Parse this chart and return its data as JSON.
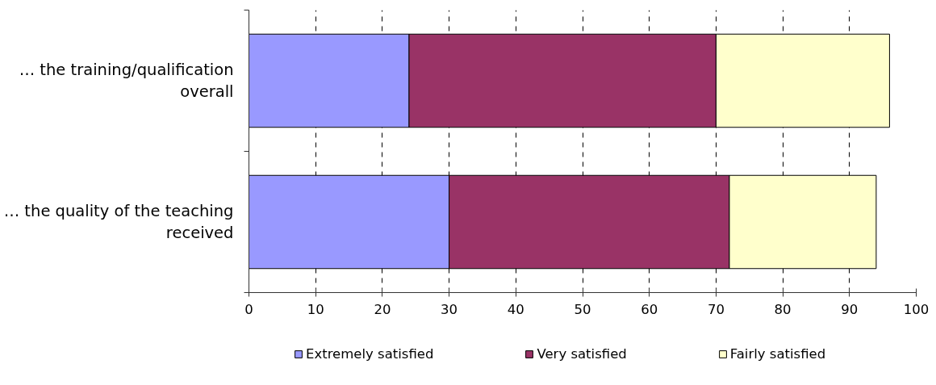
{
  "chart_data": {
    "type": "bar",
    "orientation": "horizontal",
    "stacked": true,
    "categories": [
      "… the training/qualification overall",
      "… the quality of the teaching received"
    ],
    "series": [
      {
        "name": "Extremely satisfied",
        "color": "#9999ff",
        "values": [
          24,
          30
        ]
      },
      {
        "name": "Very satisfied",
        "color": "#993366",
        "values": [
          46,
          42
        ]
      },
      {
        "name": "Fairly satisfied",
        "color": "#ffffcc",
        "values": [
          26,
          22
        ]
      }
    ],
    "xlim": [
      0,
      100
    ],
    "xticks": [
      0,
      10,
      20,
      30,
      40,
      50,
      60,
      70,
      80,
      90,
      100
    ],
    "grid": "x",
    "legend": "bottom"
  }
}
